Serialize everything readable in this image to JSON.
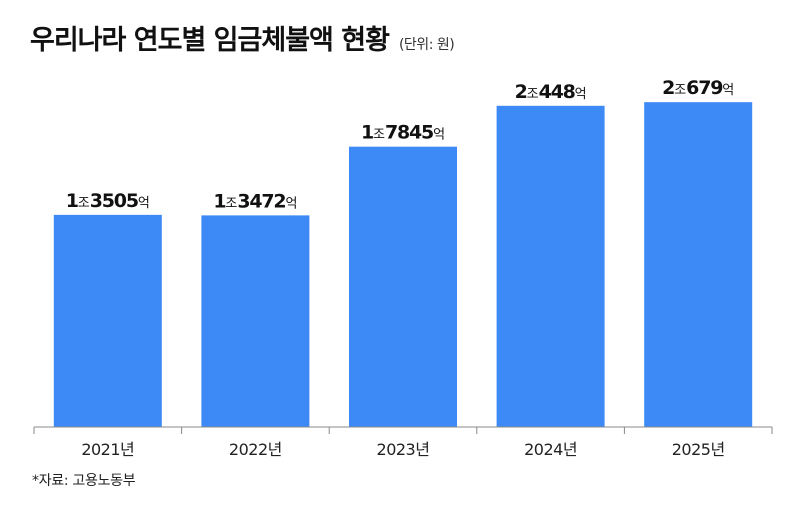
{
  "chart_data": {
    "type": "bar",
    "title": "우리나라 연도별 임금체불액 현황",
    "unit_note": "(단위: 원)",
    "categories": [
      "2021년",
      "2022년",
      "2023년",
      "2024년",
      "2025년"
    ],
    "values": [
      1350500000000,
      1347200000000,
      1784500000000,
      2044800000000,
      2067900000000
    ],
    "value_labels": [
      [
        {
          "t": "1",
          "s": false
        },
        {
          "t": "조",
          "s": true
        },
        {
          "t": "3505",
          "s": false
        },
        {
          "t": "억",
          "s": true
        }
      ],
      [
        {
          "t": "1",
          "s": false
        },
        {
          "t": "조",
          "s": true
        },
        {
          "t": "3472",
          "s": false
        },
        {
          "t": "억",
          "s": true
        }
      ],
      [
        {
          "t": "1",
          "s": false
        },
        {
          "t": "조",
          "s": true
        },
        {
          "t": "7845",
          "s": false
        },
        {
          "t": "억",
          "s": true
        }
      ],
      [
        {
          "t": "2",
          "s": false
        },
        {
          "t": "조",
          "s": true
        },
        {
          "t": "448",
          "s": false
        },
        {
          "t": "억",
          "s": true
        }
      ],
      [
        {
          "t": "2",
          "s": false
        },
        {
          "t": "조",
          "s": true
        },
        {
          "t": "679",
          "s": false
        },
        {
          "t": "억",
          "s": true
        }
      ]
    ],
    "ylim": [
      0,
      2400000000000
    ],
    "grid": false,
    "legend": "none",
    "bar_color": "#3d8af7",
    "axis_color": "#888888"
  },
  "footer": {
    "source": "*자료: 고용노동부"
  }
}
